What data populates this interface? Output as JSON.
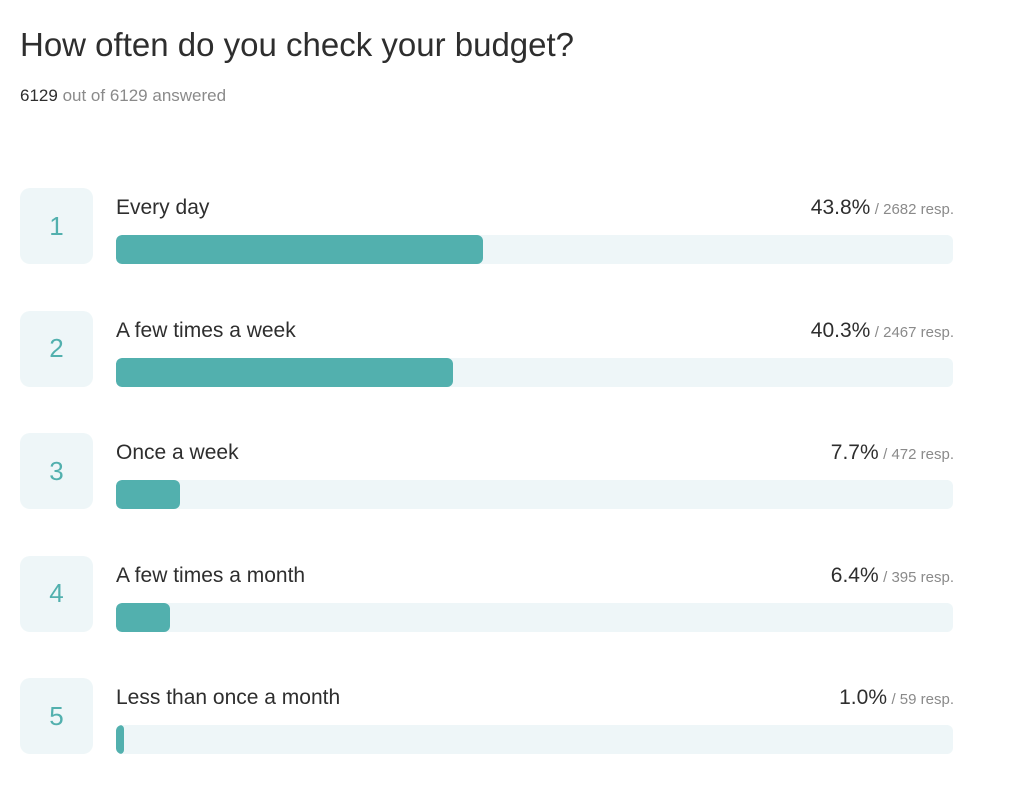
{
  "survey": {
    "question": "How often do you check your budget?",
    "answered_count": "6129",
    "answered_suffix": "out of 6129 answered"
  },
  "colors": {
    "accent": "#52b0ae",
    "track": "#eef6f8"
  },
  "chart_data": {
    "type": "bar",
    "orientation": "horizontal",
    "title": "How often do you check your budget?",
    "categories": [
      "Every day",
      "A few times a week",
      "Once a week",
      "A few times a month",
      "Less than once a month"
    ],
    "ranks": [
      "1",
      "2",
      "3",
      "4",
      "5"
    ],
    "values": [
      43.8,
      40.3,
      7.7,
      6.4,
      1.0
    ],
    "percent_labels": [
      "43.8%",
      "40.3%",
      "7.7%",
      "6.4%",
      "1.0%"
    ],
    "responses": [
      2682,
      2467,
      472,
      395,
      59
    ],
    "response_labels": [
      "/ 2682 resp.",
      "/ 2467 resp.",
      "/ 472 resp.",
      "/ 395 resp.",
      "/ 59 resp."
    ],
    "xlim": [
      0,
      100
    ],
    "unit": "%"
  }
}
